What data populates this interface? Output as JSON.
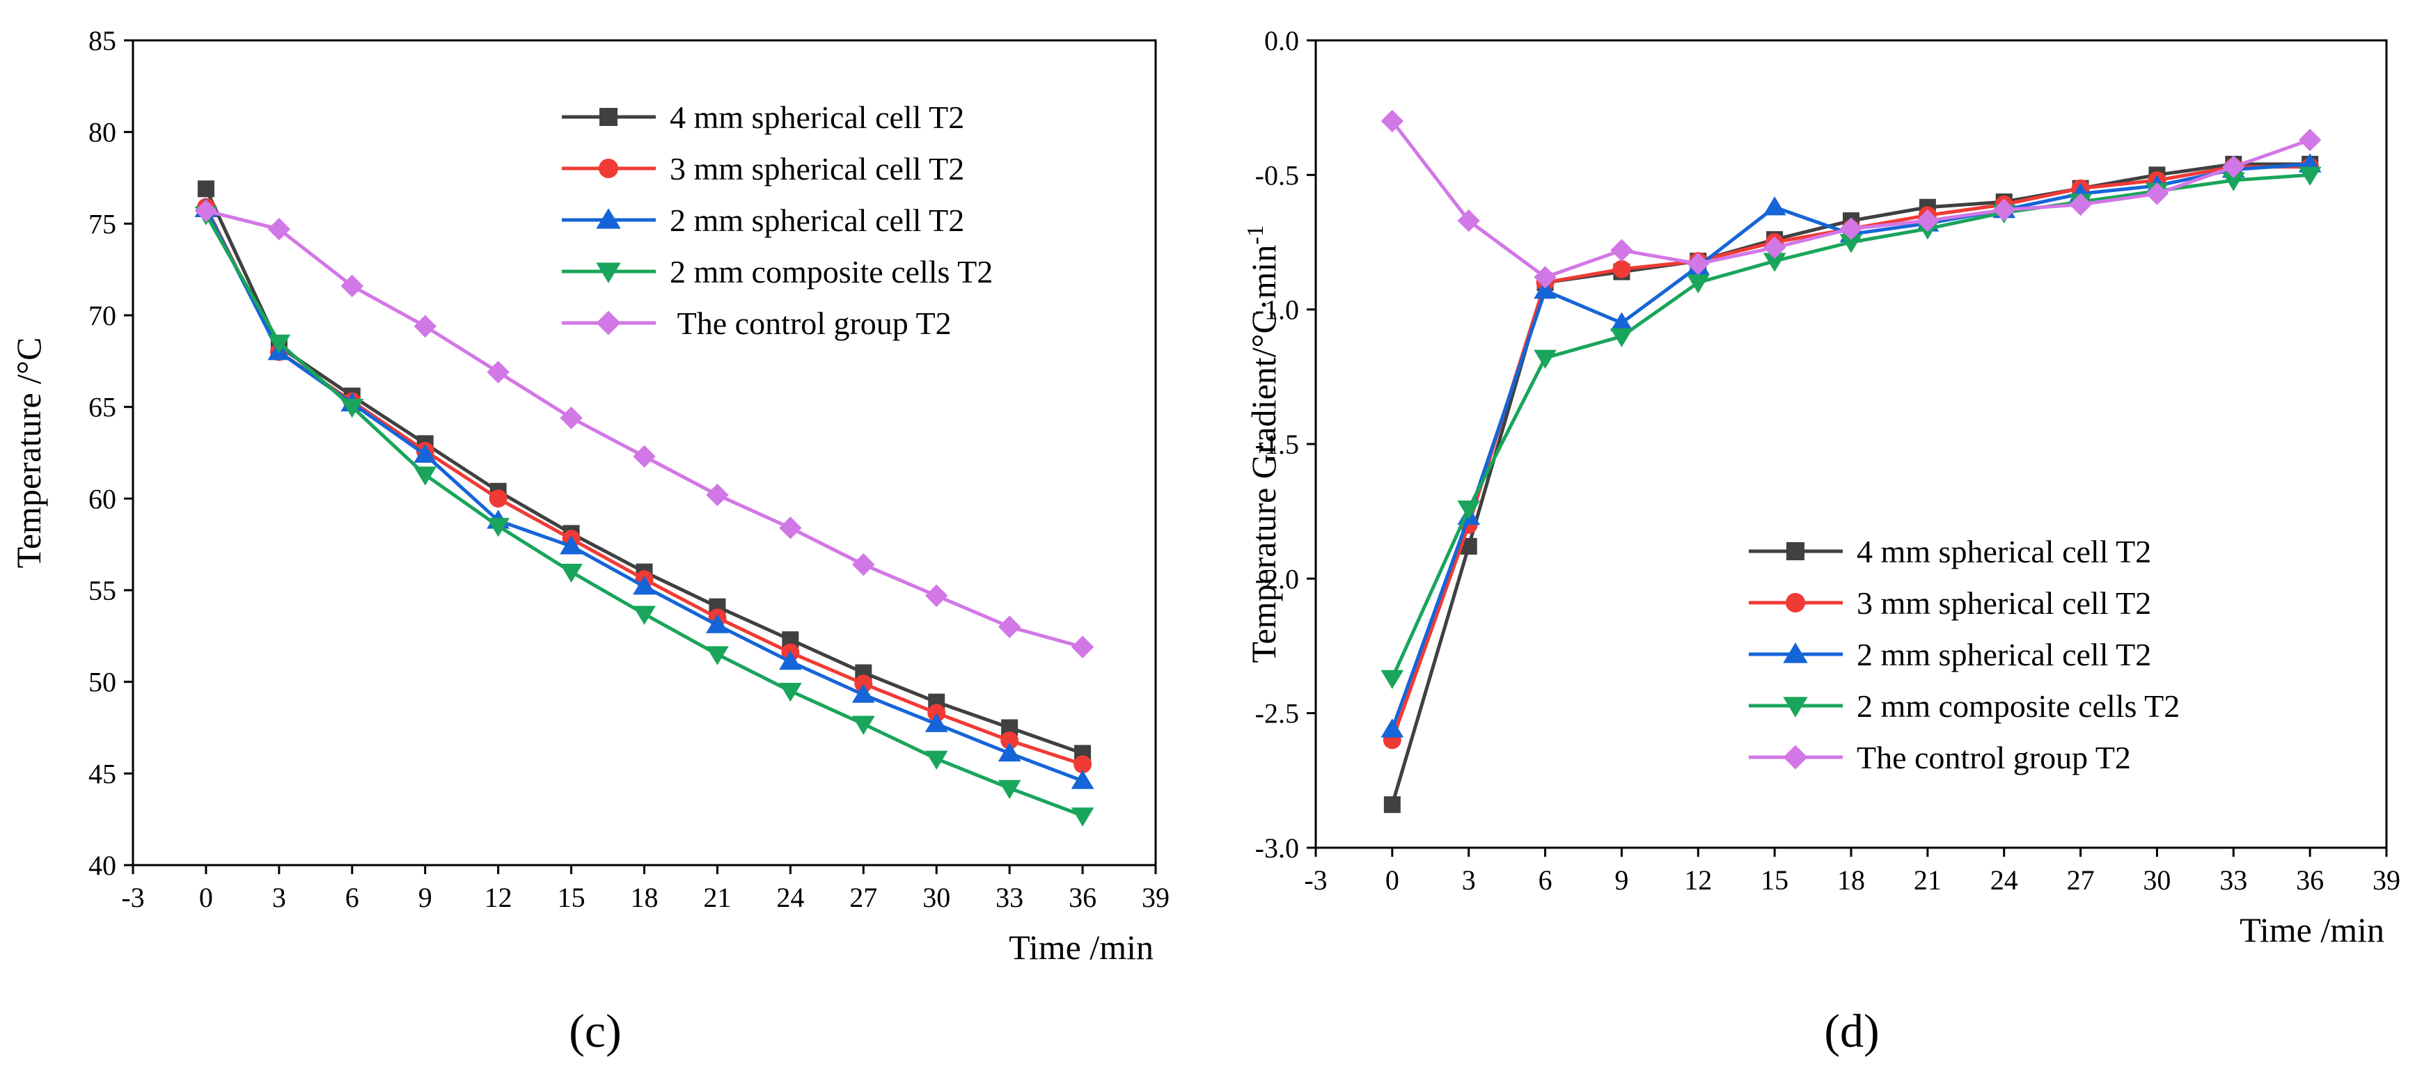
{
  "chart_data": [
    {
      "type": "line",
      "panel_label": "(c)",
      "xlabel": "Time /min",
      "ylabel": "Temperature /°C",
      "xlim": [
        -3,
        39
      ],
      "ylim": [
        40,
        85
      ],
      "x_ticks": [
        -3,
        0,
        3,
        6,
        9,
        12,
        15,
        18,
        21,
        24,
        27,
        30,
        33,
        36,
        39
      ],
      "y_ticks": [
        40,
        45,
        50,
        55,
        60,
        65,
        70,
        75,
        80,
        85
      ],
      "x": [
        0,
        3,
        6,
        9,
        12,
        15,
        18,
        21,
        24,
        27,
        30,
        33,
        36
      ],
      "legend_position": "top-right",
      "series": [
        {
          "name": "4 mm spherical cell T2",
          "color": "#404040",
          "marker": "square",
          "values": [
            76.9,
            68.3,
            65.6,
            63.0,
            60.4,
            58.1,
            56.0,
            54.1,
            52.3,
            50.5,
            48.9,
            47.5,
            46.1
          ]
        },
        {
          "name": "3 mm spherical cell T2",
          "color": "#f03a35",
          "marker": "circle",
          "values": [
            75.9,
            68.0,
            65.3,
            62.6,
            60.0,
            57.8,
            55.6,
            53.5,
            51.6,
            49.9,
            48.3,
            46.8,
            45.5
          ]
        },
        {
          "name": "2 mm spherical cell T2",
          "color": "#1565d8",
          "marker": "triangle-up",
          "values": [
            75.8,
            68.0,
            65.2,
            62.4,
            58.8,
            57.4,
            55.2,
            53.1,
            51.1,
            49.3,
            47.7,
            46.1,
            44.6
          ]
        },
        {
          "name": "2 mm composite cells T2",
          "color": "#19a55b",
          "marker": "triangle-down",
          "values": [
            75.5,
            68.5,
            65.0,
            61.3,
            58.5,
            56.0,
            53.7,
            51.5,
            49.5,
            47.7,
            45.8,
            44.2,
            42.7
          ]
        },
        {
          "name": " The control group T2",
          "color": "#d277e6",
          "marker": "diamond",
          "values": [
            75.7,
            74.7,
            71.6,
            69.4,
            66.9,
            64.4,
            62.3,
            60.2,
            58.4,
            56.4,
            54.7,
            53.0,
            51.9
          ]
        }
      ]
    },
    {
      "type": "line",
      "panel_label": "(d)",
      "xlabel": "Time /min",
      "ylabel": "Temperature Gradient/°C·min",
      "ylabel_superscript": "-1",
      "xlim": [
        -3,
        39
      ],
      "ylim": [
        -3.0,
        0.0
      ],
      "x_ticks": [
        -3,
        0,
        3,
        6,
        9,
        12,
        15,
        18,
        21,
        24,
        27,
        30,
        33,
        36,
        39
      ],
      "y_ticks": [
        -3.0,
        -2.5,
        -2.0,
        -1.5,
        -1.0,
        -0.5,
        0.0
      ],
      "y_tick_labels": [
        "-3.0",
        "-2.5",
        "-2.0",
        "-1.5",
        "-1.0",
        "-0.5",
        "0.0"
      ],
      "x": [
        0,
        3,
        6,
        9,
        12,
        15,
        18,
        21,
        24,
        27,
        30,
        33,
        36
      ],
      "legend_position": "bottom-right",
      "series": [
        {
          "name": "4 mm spherical cell T2",
          "color": "#404040",
          "marker": "square",
          "values": [
            -2.84,
            -1.88,
            -0.9,
            -0.86,
            -0.82,
            -0.74,
            -0.67,
            -0.62,
            -0.6,
            -0.55,
            -0.5,
            -0.46,
            -0.46
          ]
        },
        {
          "name": "3 mm spherical cell T2",
          "color": "#f03a35",
          "marker": "circle",
          "values": [
            -2.6,
            -1.8,
            -0.9,
            -0.85,
            -0.82,
            -0.75,
            -0.7,
            -0.65,
            -0.61,
            -0.55,
            -0.52,
            -0.47,
            -0.47
          ]
        },
        {
          "name": "2 mm spherical cell T2",
          "color": "#1565d8",
          "marker": "triangle-up",
          "values": [
            -2.56,
            -1.77,
            -0.93,
            -1.05,
            -0.84,
            -0.62,
            -0.72,
            -0.68,
            -0.63,
            -0.57,
            -0.54,
            -0.48,
            -0.46
          ]
        },
        {
          "name": "2 mm composite cells T2",
          "color": "#19a55b",
          "marker": "triangle-down",
          "values": [
            -2.37,
            -1.74,
            -1.18,
            -1.1,
            -0.9,
            -0.82,
            -0.75,
            -0.7,
            -0.64,
            -0.6,
            -0.56,
            -0.52,
            -0.5
          ]
        },
        {
          "name": "The control group T2",
          "color": "#d277e6",
          "marker": "diamond",
          "values": [
            -0.3,
            -0.67,
            -0.88,
            -0.78,
            -0.83,
            -0.77,
            -0.7,
            -0.67,
            -0.63,
            -0.61,
            -0.57,
            -0.47,
            -0.37
          ]
        }
      ]
    }
  ]
}
